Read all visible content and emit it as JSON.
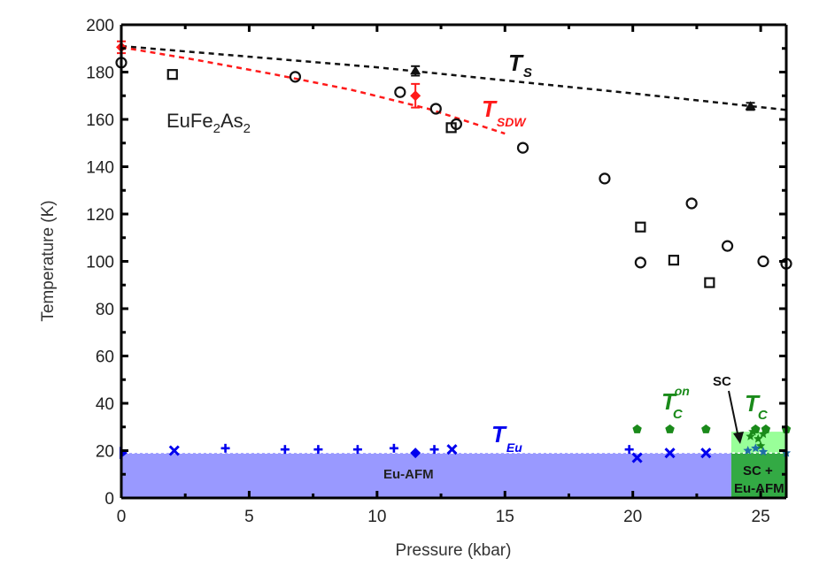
{
  "chart_data": {
    "type": "scatter",
    "title": "",
    "xlabel": "Pressure (kbar)",
    "ylabel": "Temperature (K)",
    "xlim": [
      0,
      26
    ],
    "ylim": [
      0,
      200
    ],
    "x_ticks": [
      0,
      5,
      10,
      15,
      20,
      25
    ],
    "y_ticks": [
      0,
      20,
      40,
      60,
      80,
      100,
      120,
      140,
      160,
      180,
      200
    ],
    "grid": false,
    "colors": {
      "black": "#000000",
      "red": "#ff1a1a",
      "blue": "#0000ee",
      "blue_fill": "#9999ff",
      "green": "#1a8a1a",
      "light_green": "#99ff99",
      "dark_green": "#33aa44"
    },
    "regions": [
      {
        "name": "Eu-AFM",
        "x": [
          0,
          23.85
        ],
        "y": [
          0,
          19
        ]
      },
      {
        "name": "SC",
        "x": [
          23.85,
          26
        ],
        "y": [
          19,
          28
        ]
      },
      {
        "name": "SC + Eu-AFM",
        "x": [
          23.85,
          26
        ],
        "y": [
          0,
          19
        ]
      }
    ],
    "lines": [
      {
        "name": "T_S",
        "style": "dashed",
        "color": "black",
        "x": [
          0,
          5,
          10,
          15,
          20,
          26
        ],
        "y": [
          191,
          186.5,
          182,
          176.5,
          171,
          164
        ]
      },
      {
        "name": "T_SDW",
        "style": "dashed",
        "color": "red",
        "x": [
          0,
          3,
          6,
          9,
          12,
          15
        ],
        "y": [
          190.5,
          185,
          179,
          172.5,
          164.5,
          154
        ]
      },
      {
        "name": "T_Eu",
        "style": "dashed",
        "color": "white",
        "x": [
          0,
          26
        ],
        "y": [
          19,
          19
        ]
      }
    ],
    "series": [
      {
        "name": "open circles",
        "marker": "circle",
        "color": "black",
        "x": [
          0,
          6.8,
          10.9,
          12.3,
          13.1,
          15.7,
          18.9,
          20.3,
          22.3,
          23.7,
          25.1,
          26.0
        ],
        "y": [
          184,
          178,
          171.5,
          164.5,
          158,
          148,
          135,
          99.5,
          124.5,
          106.5,
          100,
          99
        ]
      },
      {
        "name": "open squares",
        "marker": "square",
        "color": "black",
        "x": [
          2.0,
          12.9,
          20.3,
          21.6,
          23.0
        ],
        "y": [
          179,
          156.5,
          114.5,
          100.5,
          91
        ]
      },
      {
        "name": "T_S triangles",
        "marker": "triangle",
        "color": "black",
        "x": [
          11.5,
          24.6
        ],
        "y": [
          180.5,
          165.5
        ],
        "err": [
          2,
          1.5
        ]
      },
      {
        "name": "T_SDW diamond",
        "marker": "diamond",
        "color": "red",
        "x": [
          0,
          11.5
        ],
        "y": [
          190.5,
          170
        ],
        "err": [
          2.5,
          5
        ]
      },
      {
        "name": "T_Eu crosses",
        "marker": "x",
        "color": "blue",
        "x": [
          2.07,
          12.93,
          20.17,
          21.45,
          22.86
        ],
        "y": [
          20,
          20.5,
          17,
          19,
          19
        ]
      },
      {
        "name": "T_Eu plus",
        "marker": "plus",
        "color": "blue",
        "x": [
          4.07,
          6.4,
          7.7,
          9.24,
          10.66,
          12.24,
          19.86
        ],
        "y": [
          21,
          20.5,
          20.5,
          20.5,
          21,
          20.5,
          20.5
        ]
      },
      {
        "name": "T_Eu diamond",
        "marker": "diamond",
        "color": "blue",
        "x": [
          11.5
        ],
        "y": [
          19
        ]
      },
      {
        "name": "T_Eu triangle",
        "marker": "triangle-right",
        "color": "blue",
        "x": [
          0
        ],
        "y": [
          19
        ]
      },
      {
        "name": "Tc onset",
        "marker": "pentagon",
        "color": "green",
        "x": [
          20.17,
          21.45,
          22.86,
          24.8,
          25.2,
          26.0
        ],
        "y": [
          29,
          29,
          29,
          29,
          29,
          29
        ]
      },
      {
        "name": "Tc",
        "marker": "star",
        "color": "green",
        "x": [
          24.6,
          24.9,
          25.0,
          24.7,
          25.1
        ],
        "y": [
          26,
          25,
          22,
          28,
          27
        ]
      },
      {
        "name": "Tc blue",
        "marker": "star",
        "color": "steelblue",
        "x": [
          24.5,
          24.8,
          25.1,
          26.0
        ],
        "y": [
          20,
          21,
          19.5,
          19
        ]
      }
    ],
    "annotations": {
      "compound_main": "EuFe",
      "compound_sub1": "2",
      "compound_mid": "As",
      "compound_sub2": "2",
      "ts_main": "T",
      "ts_sub": "S",
      "tsdw_main": "T",
      "tsdw_sub": "SDW",
      "teu_main": "T",
      "teu_sub": "Eu",
      "tcon_main": "T",
      "tcon_sub": "C",
      "tcon_sup": "on",
      "tc_main": "T",
      "tc_sub": "C",
      "sc_label": "SC",
      "eu_afm_label": "Eu-AFM",
      "sc_eu_afm_line1": "SC +",
      "sc_eu_afm_line2": "Eu-AFM"
    }
  }
}
